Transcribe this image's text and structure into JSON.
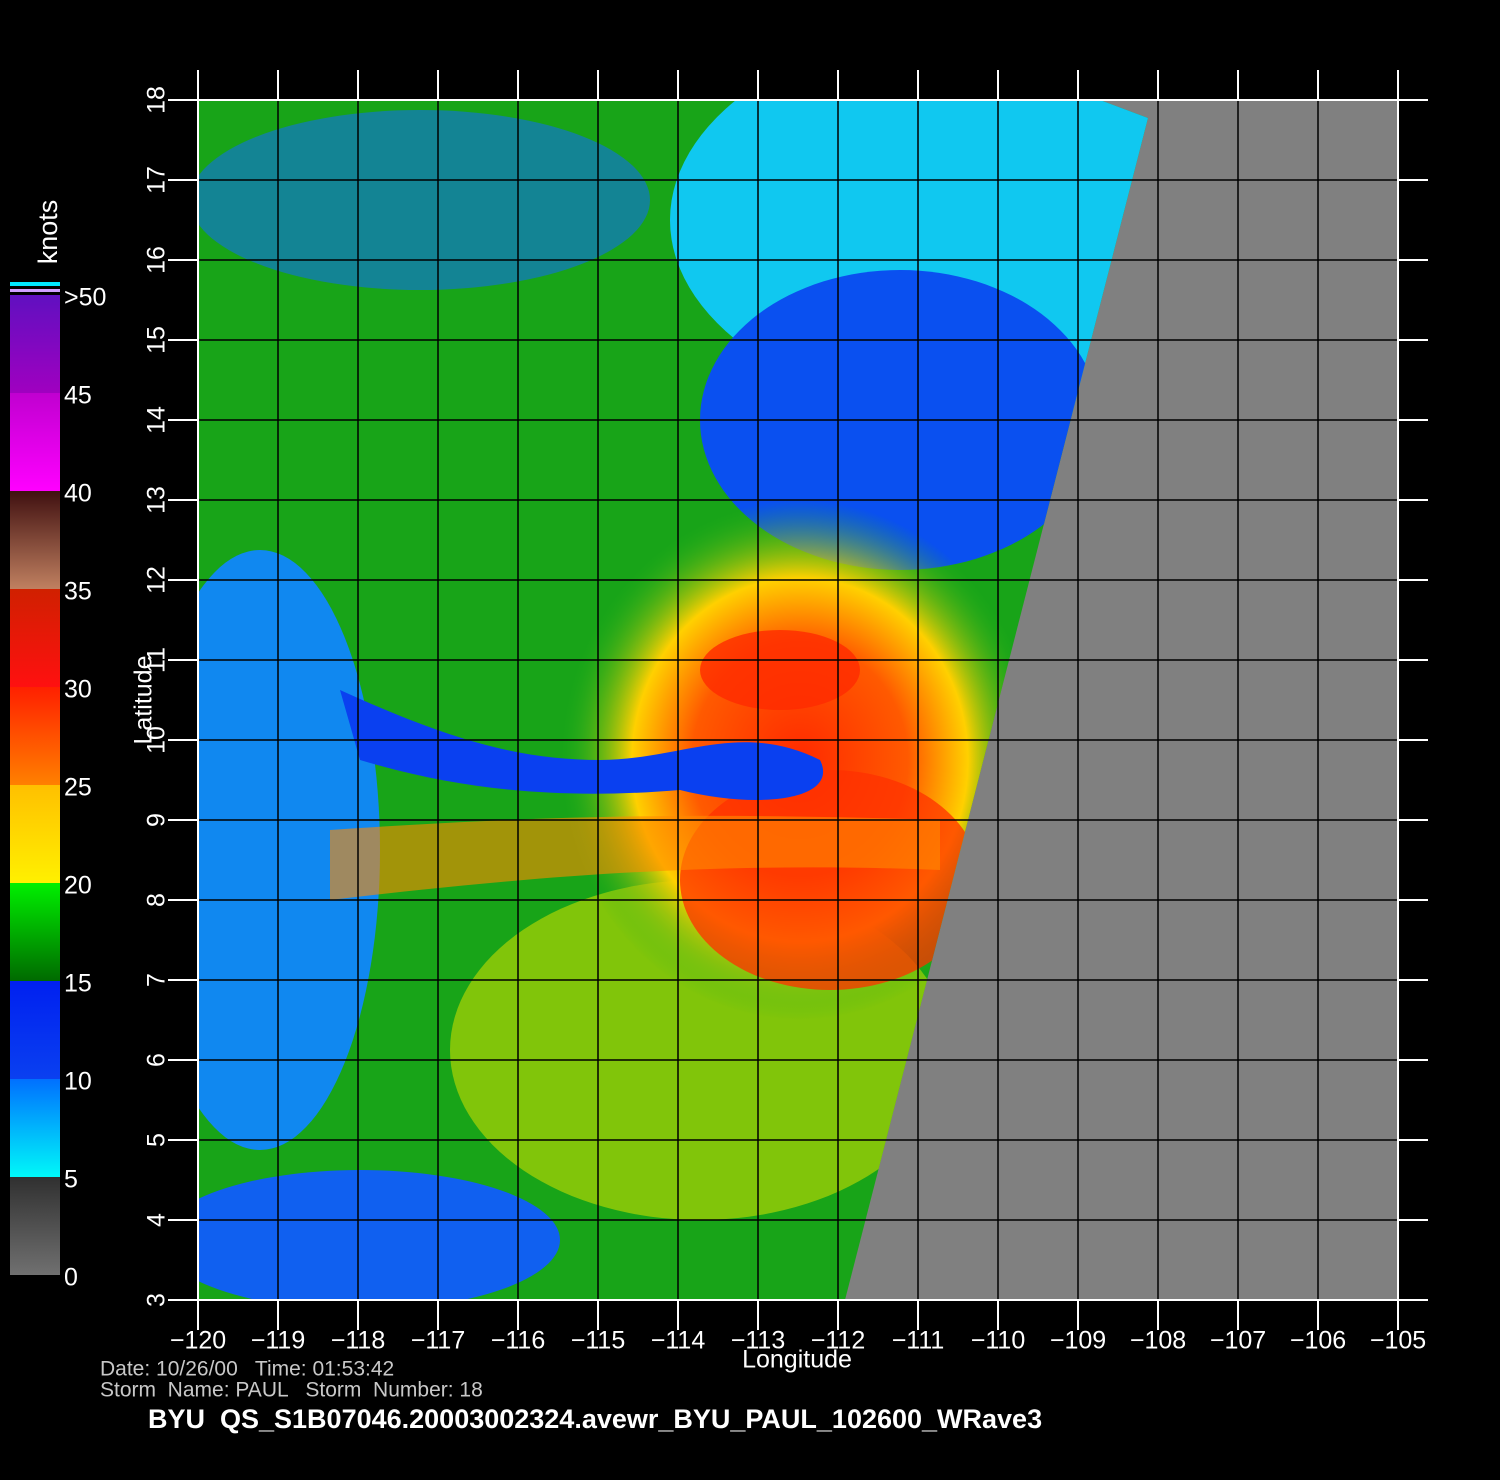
{
  "map": {
    "xlabel": "Longitude",
    "ylabel": "Latitude",
    "xlim": [
      -120,
      -105
    ],
    "ylim": [
      3,
      18
    ],
    "xticks": [
      {
        "value": -120,
        "label": "−120"
      },
      {
        "value": -119,
        "label": "−119"
      },
      {
        "value": -118,
        "label": "−118"
      },
      {
        "value": -117,
        "label": "−117"
      },
      {
        "value": -116,
        "label": "−116"
      },
      {
        "value": -115,
        "label": "−115"
      },
      {
        "value": -114,
        "label": "−114"
      },
      {
        "value": -113,
        "label": "−113"
      },
      {
        "value": -112,
        "label": "−112"
      },
      {
        "value": -111,
        "label": "−111"
      },
      {
        "value": -110,
        "label": "−110"
      },
      {
        "value": -109,
        "label": "−109"
      },
      {
        "value": -108,
        "label": "−108"
      },
      {
        "value": -107,
        "label": "−107"
      },
      {
        "value": -106,
        "label": "−106"
      },
      {
        "value": -105,
        "label": "−105"
      }
    ],
    "yticks": [
      3,
      4,
      5,
      6,
      7,
      8,
      9,
      10,
      11,
      12,
      13,
      14,
      15,
      16,
      17,
      18
    ],
    "colorbar": {
      "title": "knots",
      "lim": [
        0,
        50
      ],
      "ticks": [
        0,
        5,
        10,
        15,
        20,
        25,
        30,
        35,
        40,
        45,
        {
          "value": 50,
          "label": ">50"
        }
      ]
    }
  },
  "footer": {
    "line1": "Date: 10/26/00   Time: 01:53:42",
    "line2": "Storm  Name: PAUL   Storm  Number: 18",
    "filename": "BYU  QS_S1B07046.20003002324.avewr_BYU_PAUL_102600_WRave3"
  }
}
